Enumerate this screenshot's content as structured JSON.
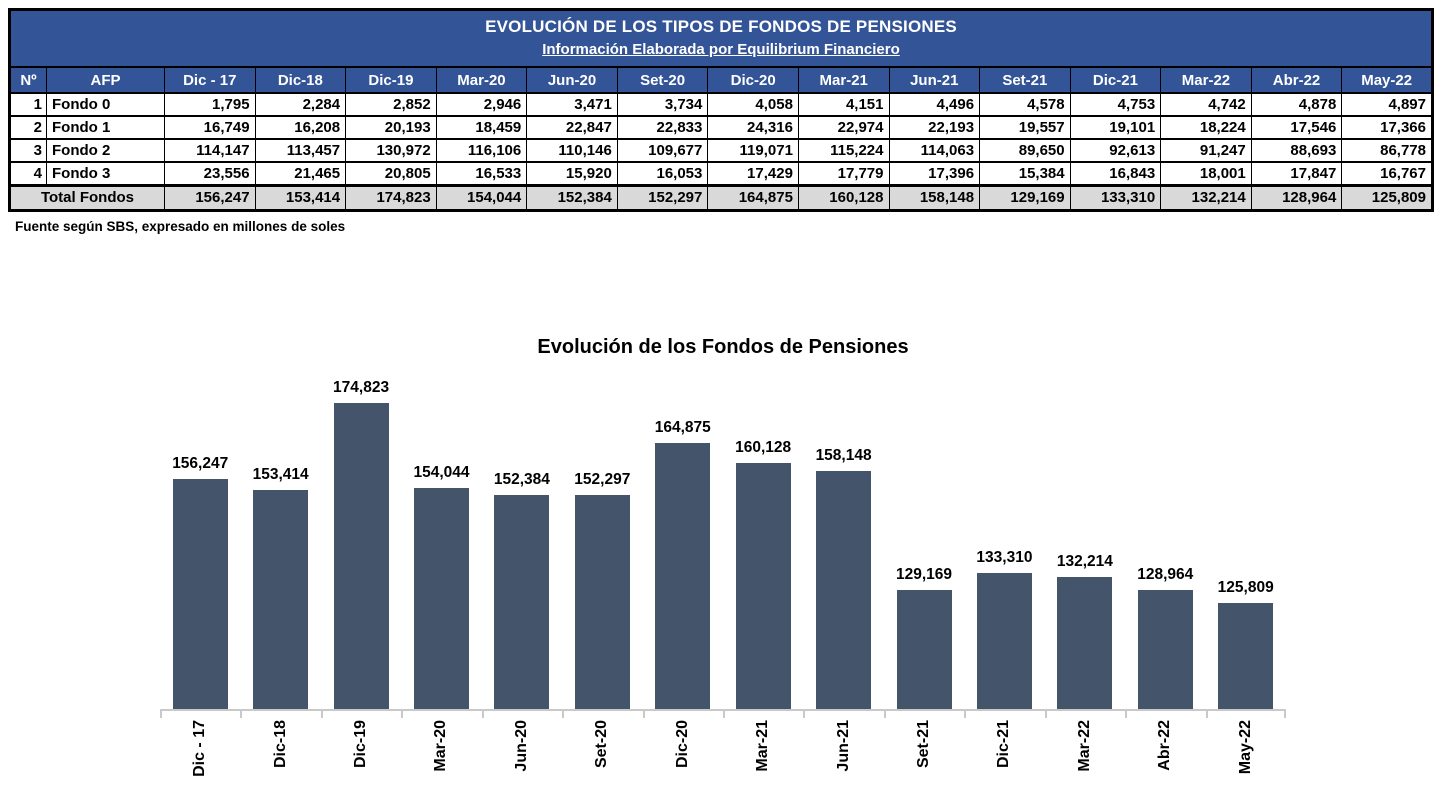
{
  "table": {
    "title": "EVOLUCIÓN DE LOS TIPOS DE FONDOS DE PENSIONES",
    "subtitle": "Información Elaborada por Equilibrium Financiero",
    "columns": [
      "Nº",
      "AFP",
      "Dic - 17",
      "Dic-18",
      "Dic-19",
      "Mar-20",
      "Jun-20",
      "Set-20",
      "Dic-20",
      "Mar-21",
      "Jun-21",
      "Set-21",
      "Dic-21",
      "Mar-22",
      "Abr-22",
      "May-22"
    ],
    "rows": [
      {
        "num": "1",
        "name": "Fondo 0",
        "values": [
          "1,795",
          "2,284",
          "2,852",
          "2,946",
          "3,471",
          "3,734",
          "4,058",
          "4,151",
          "4,496",
          "4,578",
          "4,753",
          "4,742",
          "4,878",
          "4,897"
        ]
      },
      {
        "num": "2",
        "name": "Fondo 1",
        "values": [
          "16,749",
          "16,208",
          "20,193",
          "18,459",
          "22,847",
          "22,833",
          "24,316",
          "22,974",
          "22,193",
          "19,557",
          "19,101",
          "18,224",
          "17,546",
          "17,366"
        ]
      },
      {
        "num": "3",
        "name": "Fondo 2",
        "values": [
          "114,147",
          "113,457",
          "130,972",
          "116,106",
          "110,146",
          "109,677",
          "119,071",
          "115,224",
          "114,063",
          "89,650",
          "92,613",
          "91,247",
          "88,693",
          "86,778"
        ]
      },
      {
        "num": "4",
        "name": "Fondo 3",
        "values": [
          "23,556",
          "21,465",
          "20,805",
          "16,533",
          "15,920",
          "16,053",
          "17,429",
          "17,779",
          "17,396",
          "15,384",
          "16,843",
          "18,001",
          "17,847",
          "16,767"
        ]
      }
    ],
    "total_label": "Total Fondos",
    "total_values": [
      "156,247",
      "153,414",
      "174,823",
      "154,044",
      "152,384",
      "152,297",
      "164,875",
      "160,128",
      "158,148",
      "129,169",
      "133,310",
      "132,214",
      "128,964",
      "125,809"
    ],
    "footnote": "Fuente según SBS, expresado en millones de soles"
  },
  "chart_data": {
    "type": "bar",
    "title": "Evolución de los Fondos de Pensiones",
    "categories": [
      "Dic - 17",
      "Dic-18",
      "Dic-19",
      "Mar-20",
      "Jun-20",
      "Set-20",
      "Dic-20",
      "Mar-21",
      "Jun-21",
      "Set-21",
      "Dic-21",
      "Mar-22",
      "Abr-22",
      "May-22"
    ],
    "values": [
      156247,
      153414,
      174823,
      154044,
      152384,
      152297,
      164875,
      160128,
      158148,
      129169,
      133310,
      132214,
      128964,
      125809
    ],
    "value_labels": [
      "156,247",
      "153,414",
      "174,823",
      "154,044",
      "152,384",
      "152,297",
      "164,875",
      "160,128",
      "158,148",
      "129,169",
      "133,310",
      "132,214",
      "128,964",
      "125,809"
    ],
    "xlabel": "",
    "ylabel": "",
    "ylim": [
      100000,
      175000
    ],
    "grid": false,
    "legend": false,
    "data_labels": true,
    "x_tick_rotation": 90,
    "bar_color": "#44546A"
  },
  "colors": {
    "header_blue": "#335496",
    "bar": "#44546A",
    "total_row_bg": "#D9D9D9",
    "axis_gray": "#C9C9C9",
    "border": "#000000"
  }
}
